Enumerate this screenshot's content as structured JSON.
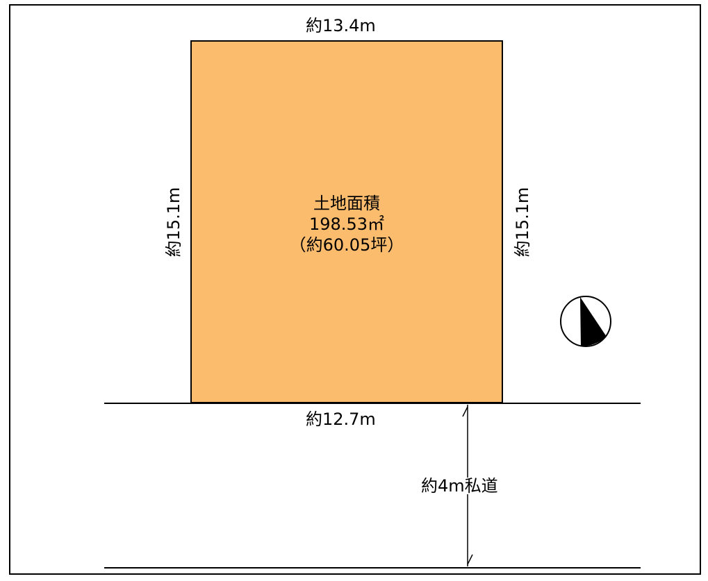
{
  "land": {
    "fill_color": "#FBBC6E",
    "title": "土地面積",
    "area_sqm": "198.53㎡",
    "area_tsubo": "（約60.05坪）"
  },
  "dimensions": {
    "top": "約13.4m",
    "bottom": "約12.7m",
    "left": "約15.1m",
    "right": "約15.1m"
  },
  "road": {
    "label": "約4m私道"
  },
  "compass": {
    "icon": "north-arrow-icon"
  }
}
